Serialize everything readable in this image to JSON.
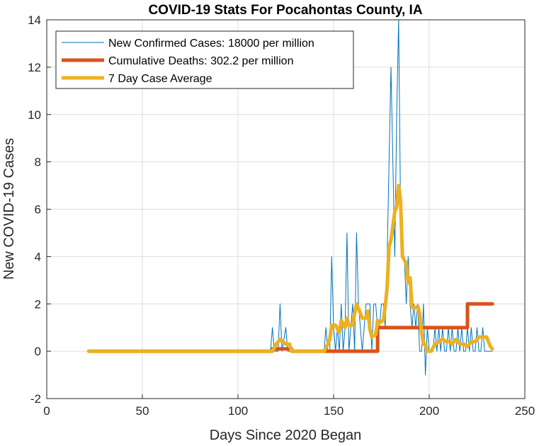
{
  "chart_data": {
    "type": "line",
    "title": "COVID-19 Stats For Pocahontas County, IA",
    "xlabel": "Days Since 2020 Began",
    "ylabel": "New COVID-19 Cases",
    "xlim": [
      0,
      250
    ],
    "ylim": [
      -2,
      14
    ],
    "xticks": [
      0,
      50,
      100,
      150,
      200,
      250
    ],
    "yticks": [
      -2,
      0,
      2,
      4,
      6,
      8,
      10,
      12,
      14
    ],
    "grid": true,
    "legend_position": "top-left",
    "series": [
      {
        "name": "New Confirmed Cases: 18000 per million",
        "color": "#0072BD",
        "points": [
          [
            22,
            0
          ],
          [
            117,
            0
          ],
          [
            118,
            1
          ],
          [
            119,
            0
          ],
          [
            121,
            0
          ],
          [
            122,
            2
          ],
          [
            123,
            0
          ],
          [
            125,
            1
          ],
          [
            126,
            0
          ],
          [
            145,
            0
          ],
          [
            146,
            1
          ],
          [
            147,
            0
          ],
          [
            148,
            0
          ],
          [
            149,
            4
          ],
          [
            150,
            1
          ],
          [
            151,
            0
          ],
          [
            152,
            1
          ],
          [
            153,
            0
          ],
          [
            154,
            2
          ],
          [
            155,
            0
          ],
          [
            156,
            1
          ],
          [
            157,
            5
          ],
          [
            158,
            0
          ],
          [
            159,
            1
          ],
          [
            160,
            2
          ],
          [
            161,
            0
          ],
          [
            162,
            5
          ],
          [
            163,
            2
          ],
          [
            164,
            1
          ],
          [
            165,
            0
          ],
          [
            166,
            1
          ],
          [
            167,
            2
          ],
          [
            168,
            2
          ],
          [
            169,
            2
          ],
          [
            170,
            0
          ],
          [
            171,
            2
          ],
          [
            172,
            2
          ],
          [
            173,
            1
          ],
          [
            174,
            1
          ],
          [
            175,
            2
          ],
          [
            176,
            2
          ],
          [
            177,
            1
          ],
          [
            178,
            4
          ],
          [
            179,
            8
          ],
          [
            180,
            12
          ],
          [
            181,
            8
          ],
          [
            182,
            4
          ],
          [
            183,
            10
          ],
          [
            184,
            14
          ],
          [
            185,
            6
          ],
          [
            186,
            4
          ],
          [
            187,
            4
          ],
          [
            188,
            2
          ],
          [
            189,
            4
          ],
          [
            190,
            2
          ],
          [
            191,
            1
          ],
          [
            192,
            2
          ],
          [
            193,
            1
          ],
          [
            194,
            2
          ],
          [
            195,
            0
          ],
          [
            196,
            0
          ],
          [
            197,
            2
          ],
          [
            198,
            -1
          ],
          [
            199,
            1
          ],
          [
            200,
            0
          ],
          [
            201,
            0
          ],
          [
            202,
            0
          ],
          [
            203,
            1
          ],
          [
            204,
            0
          ],
          [
            205,
            1
          ],
          [
            206,
            0
          ],
          [
            207,
            1
          ],
          [
            208,
            0
          ],
          [
            209,
            0
          ],
          [
            210,
            1
          ],
          [
            211,
            0
          ],
          [
            212,
            1
          ],
          [
            213,
            0
          ],
          [
            214,
            0
          ],
          [
            215,
            1
          ],
          [
            216,
            0
          ],
          [
            217,
            1
          ],
          [
            218,
            0
          ],
          [
            219,
            0
          ],
          [
            220,
            1
          ],
          [
            221,
            0
          ],
          [
            222,
            1
          ],
          [
            223,
            0
          ],
          [
            224,
            0
          ],
          [
            225,
            1
          ],
          [
            226,
            0
          ],
          [
            227,
            0
          ],
          [
            228,
            1
          ],
          [
            229,
            0
          ],
          [
            230,
            0
          ],
          [
            231,
            0
          ],
          [
            232,
            0
          ],
          [
            233,
            0
          ]
        ]
      },
      {
        "name": "Cumulative Deaths: 302.2 per million",
        "color": "#D95319",
        "points": [
          [
            22,
            0
          ],
          [
            118,
            0
          ],
          [
            118,
            0.1
          ],
          [
            128,
            0.1
          ],
          [
            128,
            0
          ],
          [
            173,
            0
          ],
          [
            173,
            1
          ],
          [
            220,
            1
          ],
          [
            220,
            2
          ],
          [
            233,
            2
          ]
        ]
      },
      {
        "name": "7 Day Case Average",
        "color": "#EDB120",
        "points": [
          [
            22,
            0
          ],
          [
            118,
            0
          ],
          [
            120,
            0.3
          ],
          [
            122,
            0.5
          ],
          [
            125,
            0.3
          ],
          [
            127,
            0.3
          ],
          [
            128,
            0
          ],
          [
            145,
            0
          ],
          [
            147,
            0.3
          ],
          [
            148,
            0.5
          ],
          [
            149,
            1.1
          ],
          [
            151,
            1.1
          ],
          [
            153,
            0.8
          ],
          [
            154,
            1.3
          ],
          [
            156,
            1.0
          ],
          [
            157,
            1.4
          ],
          [
            158,
            1.1
          ],
          [
            160,
            1.1
          ],
          [
            161,
            1.6
          ],
          [
            162,
            2.0
          ],
          [
            163,
            1.8
          ],
          [
            165,
            1.4
          ],
          [
            167,
            1.4
          ],
          [
            168,
            1.7
          ],
          [
            169,
            0.9
          ],
          [
            170,
            0.6
          ],
          [
            172,
            0.7
          ],
          [
            173,
            1.3
          ],
          [
            174,
            1.2
          ],
          [
            176,
            1.3
          ],
          [
            177,
            1.9
          ],
          [
            178,
            2.7
          ],
          [
            179,
            4.4
          ],
          [
            180,
            4.7
          ],
          [
            182,
            5.9
          ],
          [
            183,
            6.1
          ],
          [
            184,
            7.0
          ],
          [
            185,
            6.4
          ],
          [
            186,
            4.0
          ],
          [
            188,
            3.7
          ],
          [
            189,
            2.9
          ],
          [
            190,
            3.1
          ],
          [
            191,
            1.9
          ],
          [
            192,
            1.8
          ],
          [
            194,
            1.9
          ],
          [
            195,
            1.6
          ],
          [
            196,
            0.8
          ],
          [
            197,
            0.3
          ],
          [
            198,
            0.3
          ],
          [
            199,
            0.0
          ],
          [
            201,
            0.0
          ],
          [
            203,
            0.3
          ],
          [
            205,
            0.4
          ],
          [
            207,
            0.5
          ],
          [
            209,
            0.4
          ],
          [
            211,
            0.4
          ],
          [
            212,
            0.3
          ],
          [
            214,
            0.5
          ],
          [
            216,
            0.3
          ],
          [
            218,
            0.3
          ],
          [
            220,
            0.2
          ],
          [
            222,
            0.4
          ],
          [
            224,
            0.4
          ],
          [
            226,
            0.6
          ],
          [
            228,
            0.6
          ],
          [
            230,
            0.6
          ],
          [
            231,
            0.4
          ],
          [
            232,
            0.2
          ],
          [
            233,
            0.1
          ]
        ]
      }
    ]
  }
}
